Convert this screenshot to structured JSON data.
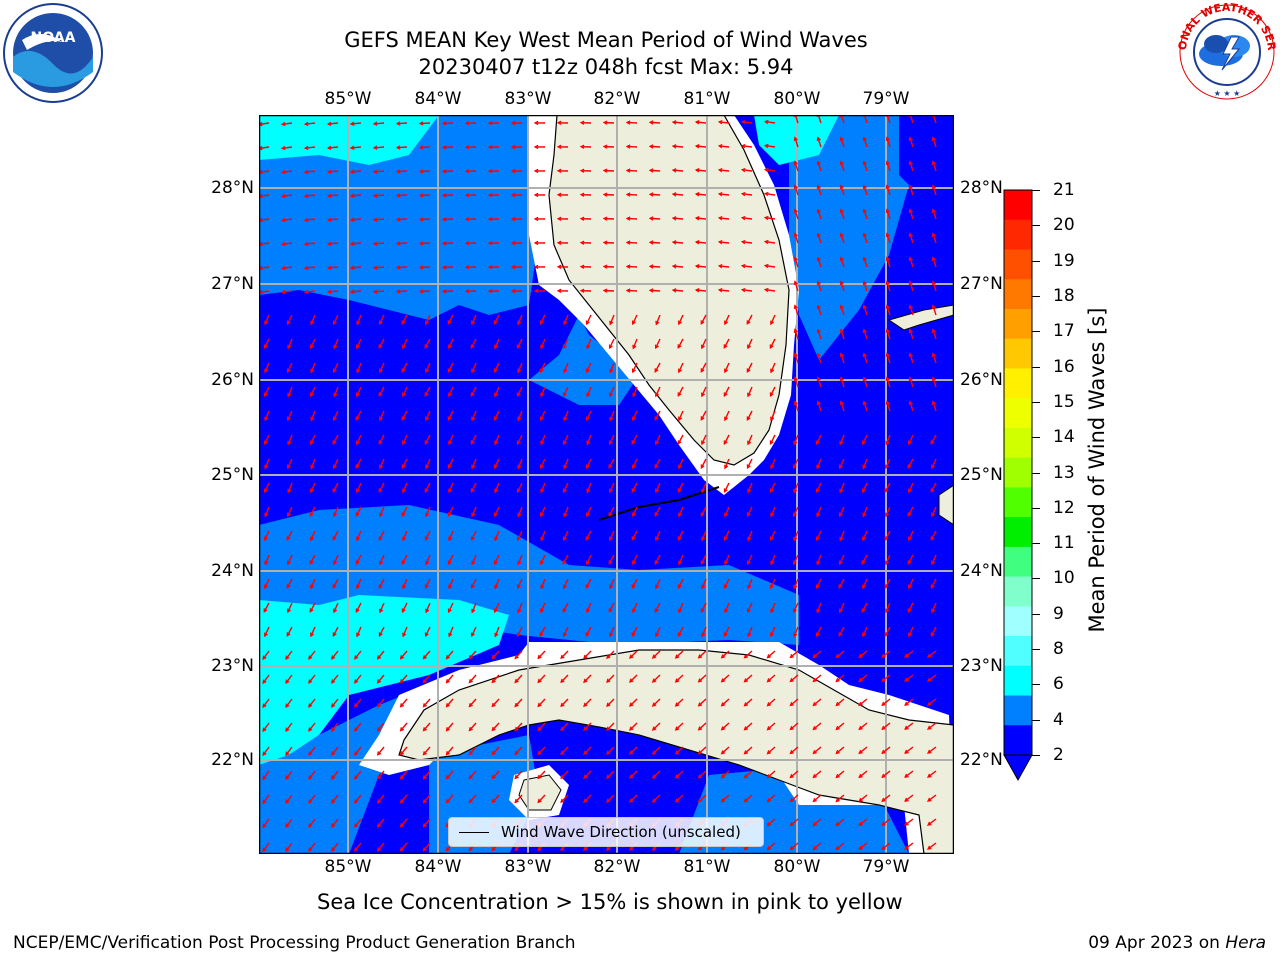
{
  "header": {
    "title_line1": "GEFS MEAN Key West Mean Period of Wind Waves",
    "title_line2": "20230407 t12z 048h fcst   Max: 5.94"
  },
  "map": {
    "lon_labels": [
      "85°W",
      "84°W",
      "83°W",
      "82°W",
      "81°W",
      "80°W",
      "79°W"
    ],
    "lat_labels": [
      "28°N",
      "27°N",
      "26°N",
      "25°N",
      "24°N",
      "23°N",
      "22°N"
    ],
    "ocean_colors": {
      "deep": "#0000ff",
      "mid": "#0080ff",
      "light": "#00ffff",
      "land": "#eeeedd",
      "arrow": "#ff0000"
    }
  },
  "colorbar": {
    "label": "Mean Period of Wind Waves [s]",
    "ticks": [
      "21",
      "20",
      "19",
      "18",
      "17",
      "16",
      "15",
      "14",
      "13",
      "12",
      "11",
      "10",
      "9",
      "8",
      "6",
      "4",
      "2"
    ],
    "colors": [
      "#ff0000",
      "#ff2800",
      "#ff5000",
      "#ff7800",
      "#ffa000",
      "#ffc800",
      "#fff000",
      "#eeff00",
      "#d0ff00",
      "#a0ff00",
      "#50ff00",
      "#00ee00",
      "#40ff80",
      "#80ffcc",
      "#a0ffff",
      "#50ffff",
      "#00ffff",
      "#0080ff",
      "#0000ff"
    ]
  },
  "legend": {
    "label": "Wind Wave Direction (unscaled)"
  },
  "subtitle": "Sea Ice Concentration > 15% is shown in pink to yellow",
  "footer": {
    "left": "NCEP/EMC/Verification Post Processing Product Generation Branch",
    "date": "09 Apr 2023 on ",
    "host": "Hera"
  },
  "logos": {
    "noaa_text": "NOAA",
    "nws_text": "NATIONAL WEATHER SERVICE"
  }
}
